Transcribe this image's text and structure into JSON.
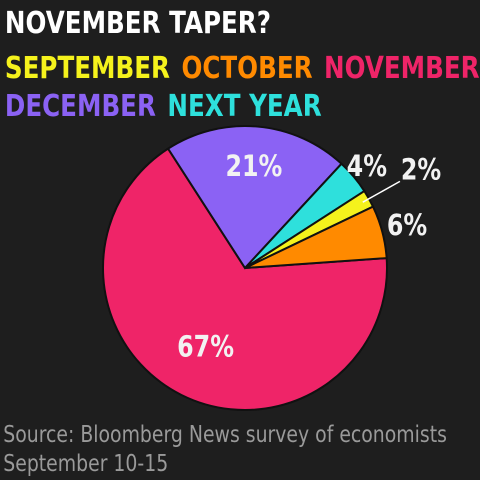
{
  "chart_data": {
    "type": "pie",
    "title": "NOVEMBER TAPER?",
    "categories": [
      "SEPTEMBER",
      "OCTOBER",
      "NOVEMBER",
      "DECEMBER",
      "NEXT YEAR"
    ],
    "values": [
      2,
      6,
      67,
      21,
      4
    ],
    "value_labels": [
      "2%",
      "6%",
      "67%",
      "21%",
      "4%"
    ],
    "colors": [
      "#f5f21c",
      "#ff8a00",
      "#ef2468",
      "#8b62f4",
      "#2ee0dc"
    ],
    "source": [
      "Source: Bloomberg News survey of economists",
      "September 10-15"
    ]
  }
}
